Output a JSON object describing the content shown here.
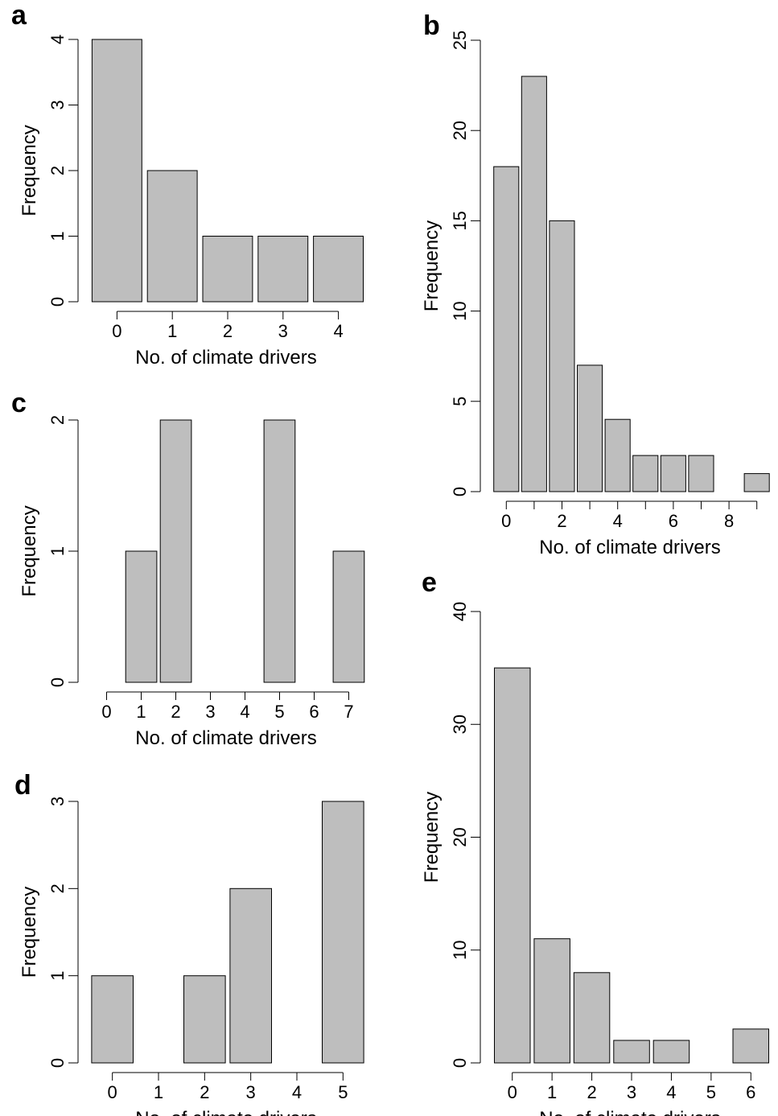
{
  "chart_data": [
    {
      "type": "bar",
      "panel_label": "a",
      "categories": [
        0,
        1,
        2,
        3,
        4
      ],
      "values": [
        4,
        2,
        1,
        1,
        1
      ],
      "xlabel": "No. of climate drivers",
      "ylabel": "Frequency",
      "ylim": [
        0,
        4
      ],
      "yticks": [
        0,
        1,
        2,
        3,
        4
      ],
      "xtick_labels": [
        "0",
        "1",
        "2",
        "3",
        "4"
      ],
      "grid": false
    },
    {
      "type": "bar",
      "panel_label": "b",
      "categories": [
        0,
        1,
        2,
        3,
        4,
        5,
        6,
        7,
        8,
        9
      ],
      "values": [
        18,
        23,
        15,
        7,
        4,
        2,
        2,
        2,
        0,
        1
      ],
      "xlabel": "No. of climate drivers",
      "ylabel": "Frequency",
      "ylim": [
        0,
        25
      ],
      "yticks": [
        0,
        5,
        10,
        15,
        20,
        25
      ],
      "xtick_labels": [
        "0",
        "",
        "2",
        "",
        "4",
        "",
        "6",
        "",
        "8",
        ""
      ],
      "grid": false
    },
    {
      "type": "bar",
      "panel_label": "c",
      "categories": [
        0,
        1,
        2,
        3,
        4,
        5,
        6,
        7
      ],
      "values": [
        0,
        1,
        2,
        0,
        0,
        2,
        0,
        1
      ],
      "xlabel": "No. of climate drivers",
      "ylabel": "Frequency",
      "ylim": [
        0,
        2
      ],
      "yticks": [
        0,
        1,
        2
      ],
      "xtick_labels": [
        "0",
        "1",
        "2",
        "3",
        "4",
        "5",
        "6",
        "7"
      ],
      "grid": false
    },
    {
      "type": "bar",
      "panel_label": "d",
      "categories": [
        0,
        1,
        2,
        3,
        4,
        5
      ],
      "values": [
        1,
        0,
        1,
        2,
        0,
        3
      ],
      "xlabel": "No. of climate drivers",
      "ylabel": "Frequency",
      "ylim": [
        0,
        3
      ],
      "yticks": [
        0,
        1,
        2,
        3
      ],
      "xtick_labels": [
        "0",
        "1",
        "2",
        "3",
        "4",
        "5"
      ],
      "grid": false
    },
    {
      "type": "bar",
      "panel_label": "e",
      "categories": [
        0,
        1,
        2,
        3,
        4,
        5,
        6
      ],
      "values": [
        35,
        11,
        8,
        2,
        2,
        0,
        3
      ],
      "xlabel": "No. of climate drivers",
      "ylabel": "Frequency",
      "ylim": [
        0,
        40
      ],
      "yticks": [
        0,
        10,
        20,
        30,
        40
      ],
      "xtick_labels": [
        "0",
        "1",
        "2",
        "3",
        "4",
        "5",
        "6"
      ],
      "grid": false
    }
  ]
}
